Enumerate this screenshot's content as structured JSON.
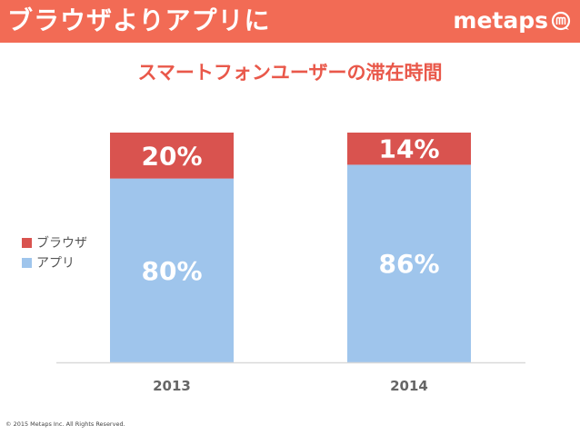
{
  "header": {
    "title": "ブラウザよりアプリに",
    "logo_text": "metaps",
    "logo_mark_icon": "metaps-m-circle-icon",
    "background_color": "#f26b55"
  },
  "chart_data": {
    "type": "bar",
    "stacked": true,
    "title": "スマートフォンユーザーの滞在時間",
    "categories": [
      "2013",
      "2014"
    ],
    "series": [
      {
        "name": "アプリ",
        "values": [
          80,
          86
        ],
        "labels": [
          "80%",
          "86%"
        ],
        "color": "#9fc5ec"
      },
      {
        "name": "ブラウザ",
        "values": [
          20,
          14
        ],
        "labels": [
          "20%",
          "14%"
        ],
        "color": "#d9534f"
      }
    ],
    "ylim": [
      0,
      100
    ],
    "grid": false,
    "legend_placement": "left"
  },
  "footer": {
    "copyright": "© 2015 Metaps Inc. All Rights Reserved."
  }
}
